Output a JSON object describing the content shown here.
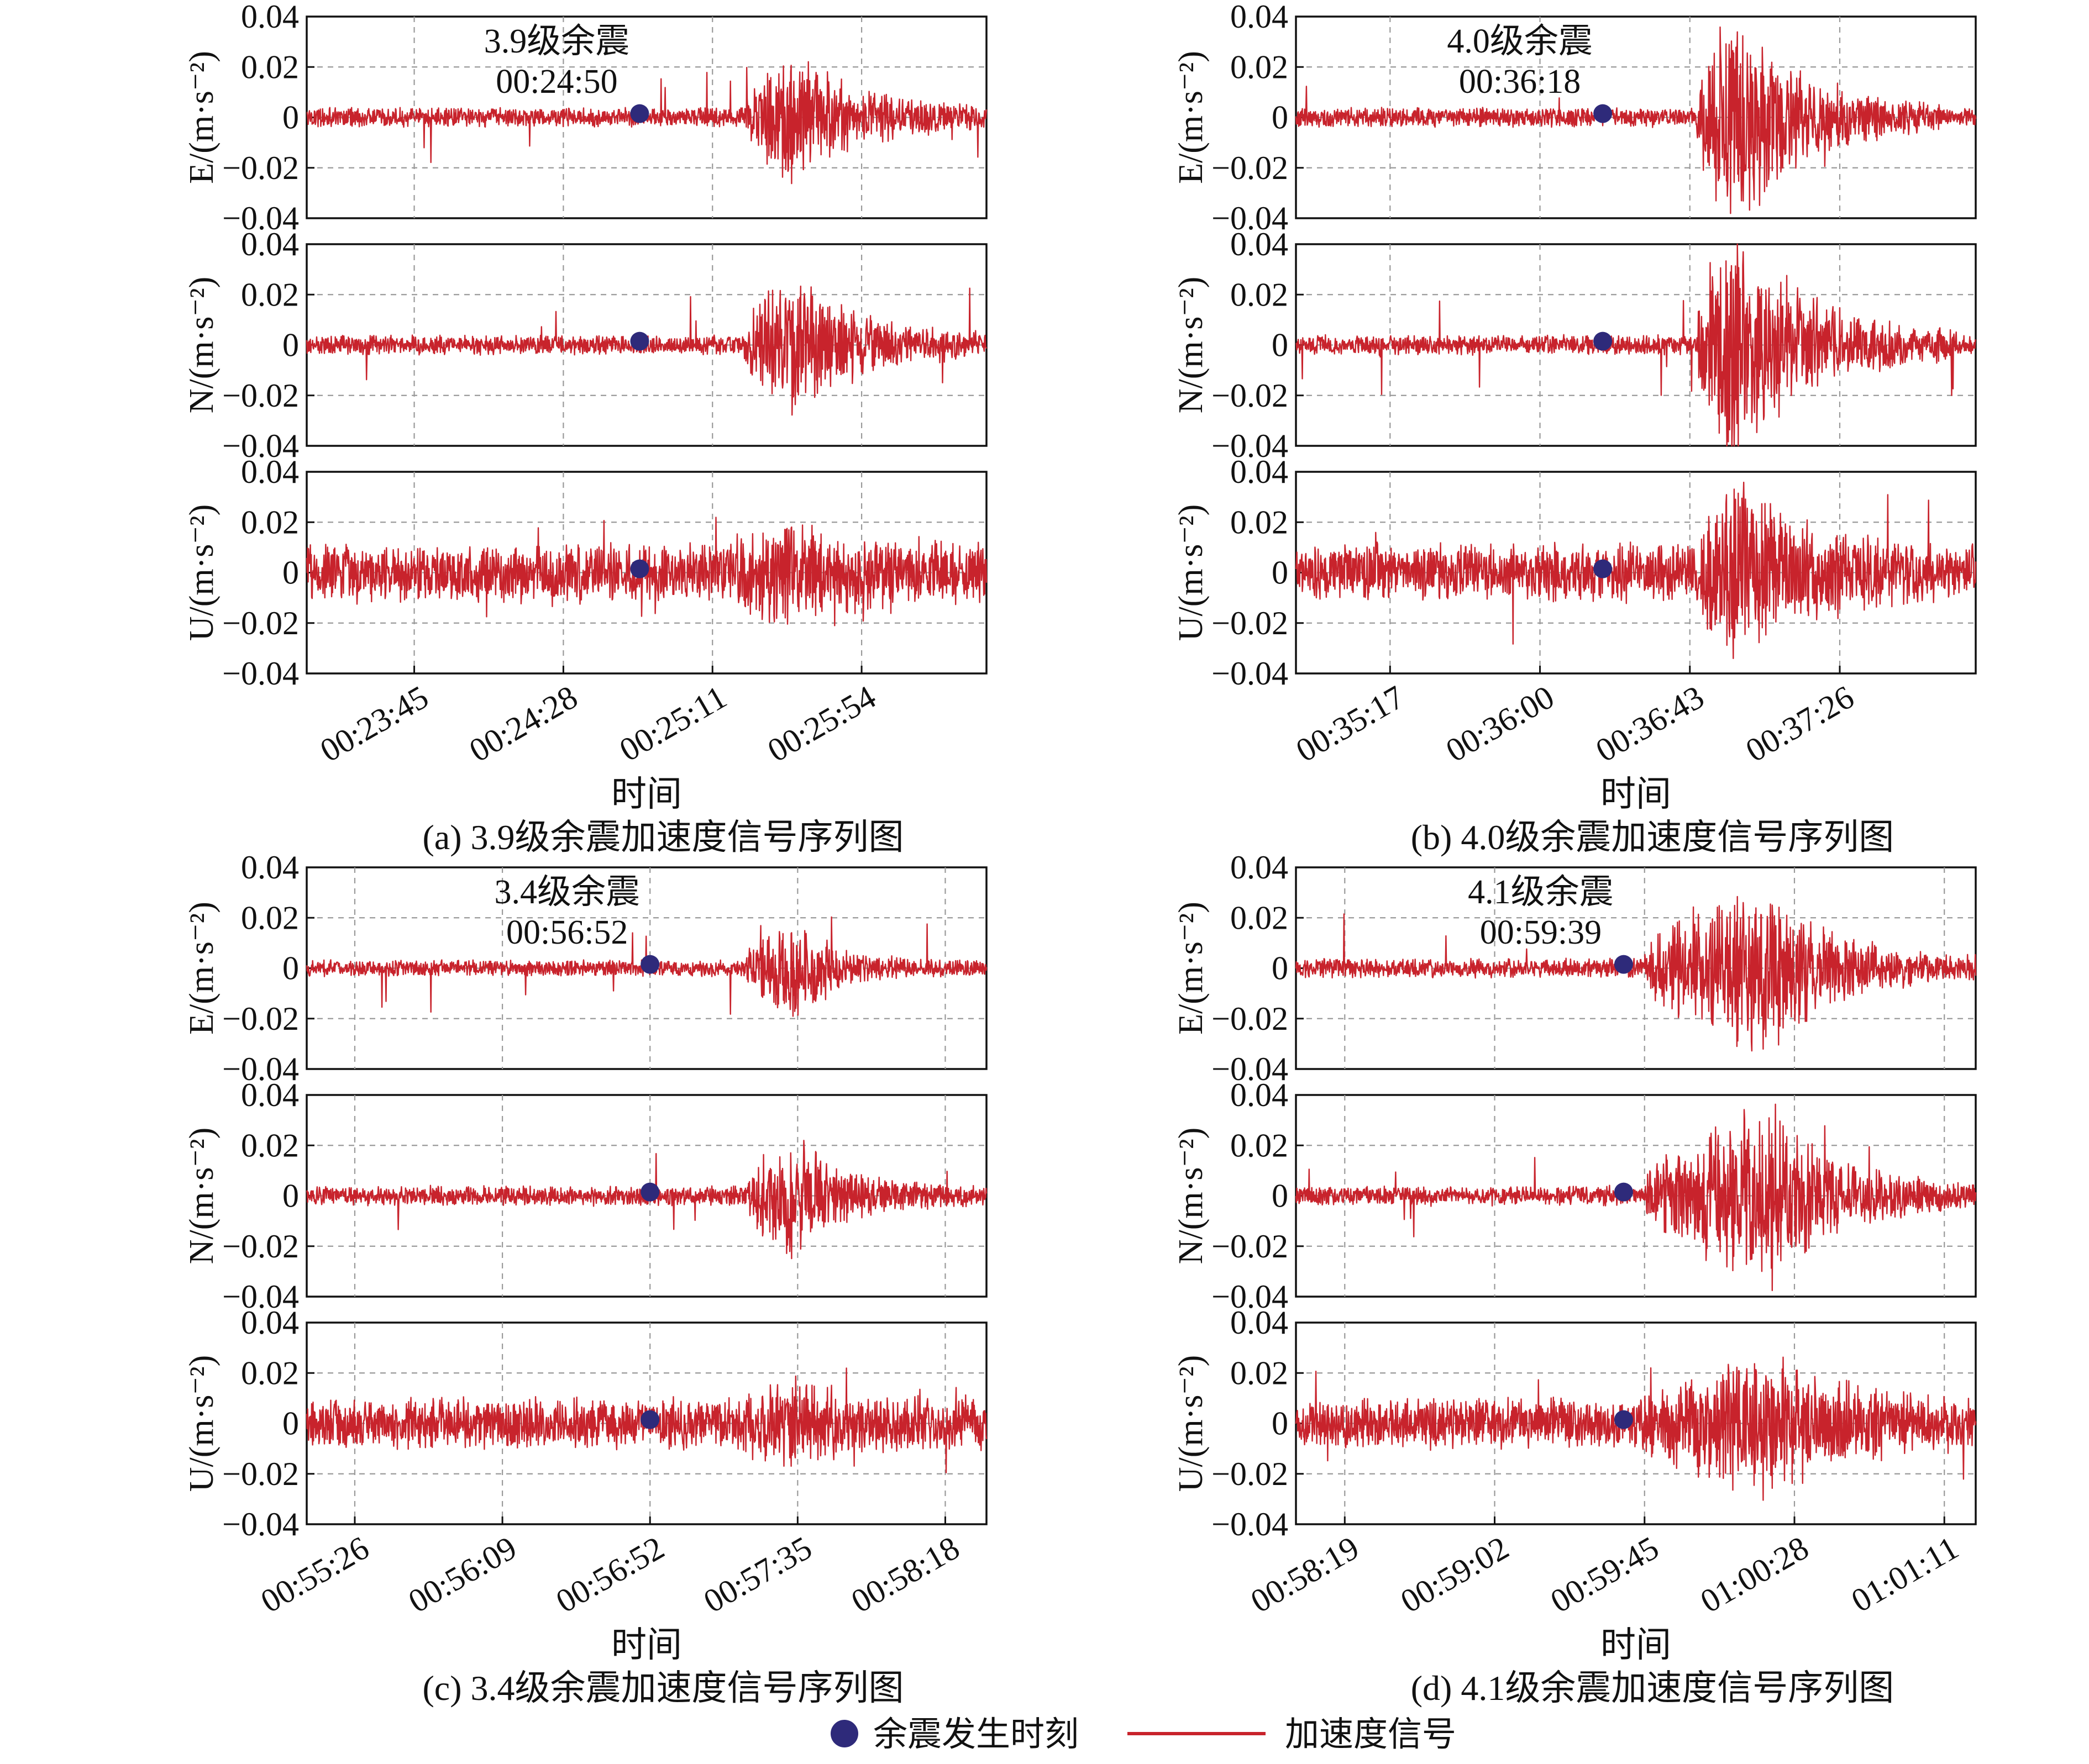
{
  "colors": {
    "signal": "#c8232c",
    "marker": "#2e2a7a",
    "grid": "#9a9a9a"
  },
  "legend": {
    "marker_label": "余震发生时刻",
    "line_label": "加速度信号"
  },
  "chart_data": [
    {
      "type": "line",
      "caption": "(a) 3.9级余震加速度信号序列图",
      "annotation": [
        "3.9级余震",
        "00:24:50"
      ],
      "xlabel": "时间",
      "x_ticks": [
        "00:23:45",
        "00:24:28",
        "00:25:11",
        "00:25:54"
      ],
      "x_range": [
        "00:23:14",
        "00:26:30"
      ],
      "event_time": "00:24:50",
      "ylim": [
        -0.04,
        0.04
      ],
      "y_ticks": [
        "0.04",
        "0.02",
        "0",
        "−0.02",
        "−0.04"
      ],
      "grid": true,
      "series": [
        {
          "name": "E/(m·s⁻²)",
          "noise_amp": 0.003,
          "burst_start": "00:25:20",
          "burst_peak": "00:25:35",
          "burst_end": "00:26:10",
          "burst_amp": 0.018
        },
        {
          "name": "N/(m·s⁻²)",
          "noise_amp": 0.003,
          "burst_start": "00:25:20",
          "burst_peak": "00:25:35",
          "burst_end": "00:26:10",
          "burst_amp": 0.02
        },
        {
          "name": "U/(m·s⁻²)",
          "noise_amp": 0.009,
          "burst_start": "00:25:15",
          "burst_peak": "00:25:35",
          "burst_end": "00:26:05",
          "burst_amp": 0.008
        }
      ]
    },
    {
      "type": "line",
      "caption": "(b) 4.0级余震加速度信号序列图",
      "annotation": [
        "4.0级余震",
        "00:36:18"
      ],
      "xlabel": "时间",
      "x_ticks": [
        "00:35:17",
        "00:36:00",
        "00:36:43",
        "00:37:26"
      ],
      "x_range": [
        "00:34:50",
        "00:38:05"
      ],
      "event_time": "00:36:18",
      "ylim": [
        -0.04,
        0.04
      ],
      "y_ticks": [
        "0.04",
        "0.02",
        "0",
        "−0.02",
        "−0.04"
      ],
      "grid": true,
      "series": [
        {
          "name": "E/(m·s⁻²)",
          "noise_amp": 0.003,
          "burst_start": "00:36:45",
          "burst_peak": "00:36:55",
          "burst_end": "00:37:30",
          "burst_amp": 0.034
        },
        {
          "name": "N/(m·s⁻²)",
          "noise_amp": 0.003,
          "burst_start": "00:36:45",
          "burst_peak": "00:36:55",
          "burst_end": "00:37:35",
          "burst_amp": 0.036
        },
        {
          "name": "U/(m·s⁻²)",
          "noise_amp": 0.009,
          "burst_start": "00:36:45",
          "burst_peak": "00:36:58",
          "burst_end": "00:37:30",
          "burst_amp": 0.02
        }
      ]
    },
    {
      "type": "line",
      "caption": "(c) 3.4级余震加速度信号序列图",
      "annotation": [
        "3.4级余震",
        "00:56:52"
      ],
      "xlabel": "时间",
      "x_ticks": [
        "00:55:26",
        "00:56:09",
        "00:56:52",
        "00:57:35",
        "00:58:18"
      ],
      "x_range": [
        "00:55:12",
        "00:58:30"
      ],
      "event_time": "00:56:52",
      "ylim": [
        -0.04,
        0.04
      ],
      "y_ticks": [
        "0.04",
        "0.02",
        "0",
        "−0.02",
        "−0.04"
      ],
      "grid": true,
      "series": [
        {
          "name": "E/(m·s⁻²)",
          "noise_amp": 0.0025,
          "burst_start": "00:57:20",
          "burst_peak": "00:57:35",
          "burst_end": "00:57:55",
          "burst_amp": 0.014
        },
        {
          "name": "N/(m·s⁻²)",
          "noise_amp": 0.003,
          "burst_start": "00:57:20",
          "burst_peak": "00:57:35",
          "burst_end": "00:58:00",
          "burst_amp": 0.016
        },
        {
          "name": "U/(m·s⁻²)",
          "noise_amp": 0.008,
          "burst_start": "00:57:15",
          "burst_peak": "00:57:35",
          "burst_end": "00:58:05",
          "burst_amp": 0.006
        }
      ]
    },
    {
      "type": "line",
      "caption": "(d) 4.1级余震加速度信号序列图",
      "annotation": [
        "4.1级余震",
        "00:59:39"
      ],
      "xlabel": "时间",
      "x_ticks": [
        "00:58:19",
        "00:59:02",
        "00:59:45",
        "01:00:28",
        "01:01:11"
      ],
      "x_range": [
        "00:58:05",
        "01:01:20"
      ],
      "event_time": "00:59:39",
      "ylim": [
        -0.04,
        0.04
      ],
      "y_ticks": [
        "0.04",
        "0.02",
        "0",
        "−0.02",
        "−0.04"
      ],
      "grid": true,
      "series": [
        {
          "name": "E/(m·s⁻²)",
          "noise_amp": 0.003,
          "burst_start": "00:59:45",
          "burst_peak": "01:00:22",
          "burst_end": "01:00:55",
          "burst_amp": 0.024
        },
        {
          "name": "N/(m·s⁻²)",
          "noise_amp": 0.003,
          "burst_start": "00:59:45",
          "burst_peak": "01:00:22",
          "burst_end": "01:00:55",
          "burst_amp": 0.026
        },
        {
          "name": "U/(m·s⁻²)",
          "noise_amp": 0.008,
          "burst_start": "00:59:45",
          "burst_peak": "01:00:22",
          "burst_end": "01:00:55",
          "burst_amp": 0.015
        }
      ]
    }
  ]
}
